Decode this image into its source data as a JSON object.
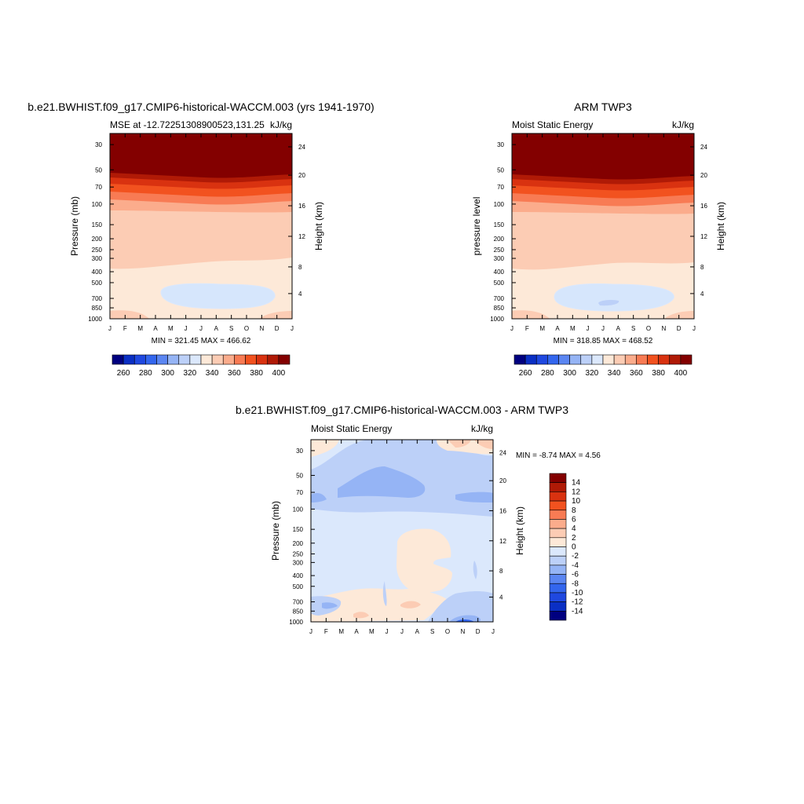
{
  "chart_data": [
    {
      "type": "contour",
      "title": "b.e21.BWHIST.f09_g17.CMIP6-historical-WACCM.003 (yrs 1941-1970)",
      "subtitle_left": "MSE at -12.72251308900523,131.25",
      "subtitle_right": "kJ/kg",
      "ylabel": "Pressure (mb)",
      "ylabel_right": "Height (km)",
      "x_ticks": [
        "J",
        "F",
        "M",
        "A",
        "M",
        "J",
        "J",
        "A",
        "S",
        "O",
        "N",
        "D",
        "J"
      ],
      "y_ticks": [
        "30",
        "50",
        "70",
        "100",
        "150",
        "200",
        "250",
        "300",
        "400",
        "500",
        "700",
        "850",
        "1000"
      ],
      "y_right_ticks": [
        "24",
        "20",
        "16",
        "12",
        "8",
        "4"
      ],
      "minmax": "MIN = 321.45 MAX = 466.62",
      "colorbar_labels": [
        "260",
        "280",
        "300",
        "320",
        "340",
        "360",
        "380",
        "400"
      ]
    },
    {
      "type": "contour",
      "title": "ARM TWP3",
      "subtitle_left": "Moist Static Energy",
      "subtitle_right": "kJ/kg",
      "ylabel": "pressure level",
      "ylabel_right": "Height (km)",
      "x_ticks": [
        "J",
        "F",
        "M",
        "A",
        "M",
        "J",
        "J",
        "A",
        "S",
        "O",
        "N",
        "D",
        "J"
      ],
      "y_ticks": [
        "30",
        "50",
        "70",
        "100",
        "150",
        "200",
        "250",
        "300",
        "400",
        "500",
        "700",
        "850",
        "1000"
      ],
      "y_right_ticks": [
        "24",
        "20",
        "16",
        "12",
        "8",
        "4"
      ],
      "minmax": "MIN = 318.85 MAX = 468.52",
      "colorbar_labels": [
        "260",
        "280",
        "300",
        "320",
        "340",
        "360",
        "380",
        "400"
      ]
    },
    {
      "type": "contour",
      "title": "b.e21.BWHIST.f09_g17.CMIP6-historical-WACCM.003 - ARM TWP3",
      "subtitle_left": "Moist Static Energy",
      "subtitle_right": "kJ/kg",
      "ylabel": "Pressure (mb)",
      "ylabel_right": "Height (km)",
      "x_ticks": [
        "J",
        "F",
        "M",
        "A",
        "M",
        "J",
        "J",
        "A",
        "S",
        "O",
        "N",
        "D",
        "J"
      ],
      "y_ticks": [
        "30",
        "50",
        "70",
        "100",
        "150",
        "200",
        "250",
        "300",
        "400",
        "500",
        "700",
        "850",
        "1000"
      ],
      "y_right_ticks": [
        "24",
        "20",
        "16",
        "12",
        "8",
        "4"
      ],
      "minmax": "MIN =  -8.74 MAX =   4.56",
      "colorbar_labels": [
        "14",
        "12",
        "10",
        "8",
        "6",
        "4",
        "2",
        "0",
        "-2",
        "-4",
        "-6",
        "-8",
        "-10",
        "-12",
        "-14"
      ]
    }
  ],
  "colors": {
    "seq": [
      "#000080",
      "#0a2fc4",
      "#1f48e0",
      "#3366ee",
      "#5b86f2",
      "#95b4f5",
      "#bcd0f8",
      "#dbe8fc",
      "#fde9d8",
      "#fcccb4",
      "#fbac8c",
      "#f87b54",
      "#f2521f",
      "#d93210",
      "#b01a06",
      "#830000"
    ],
    "div": [
      "#830000",
      "#b01a06",
      "#d93210",
      "#f2521f",
      "#f87b54",
      "#fbac8c",
      "#fcccb4",
      "#fde9d8",
      "#dbe8fc",
      "#bcd0f8",
      "#95b4f5",
      "#5b86f2",
      "#3366ee",
      "#1f48e0",
      "#0a2fc4",
      "#000080"
    ]
  }
}
